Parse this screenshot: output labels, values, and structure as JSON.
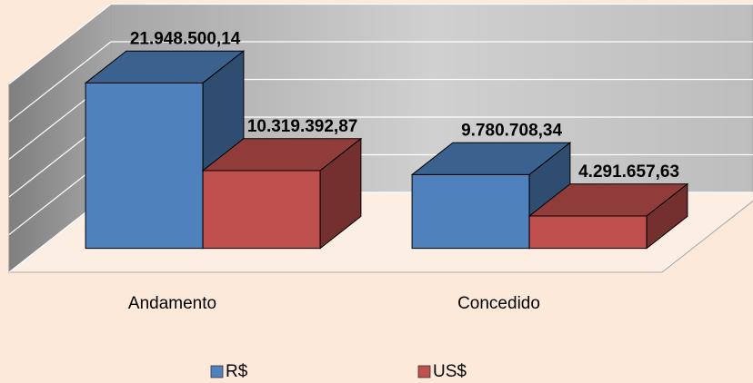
{
  "chart_data": {
    "type": "bar3d",
    "categories": [
      "Andamento",
      "Concedido"
    ],
    "series": [
      {
        "name": "R$",
        "color": "#4f81bd",
        "values": [
          21948500.14,
          9780708.34
        ],
        "value_labels": [
          "21.948.500,14",
          "9.780.708,34"
        ]
      },
      {
        "name": "US$",
        "color": "#c0504d",
        "values": [
          10319392.87,
          4291657.63
        ],
        "value_labels": [
          "10.319.392,87",
          "4.291.657,63"
        ]
      }
    ],
    "ylim": [
      0,
      25000000
    ],
    "yticks": [
      0,
      5000000,
      10000000,
      15000000,
      20000000,
      25000000
    ],
    "grid": true,
    "legend": "bottom"
  }
}
